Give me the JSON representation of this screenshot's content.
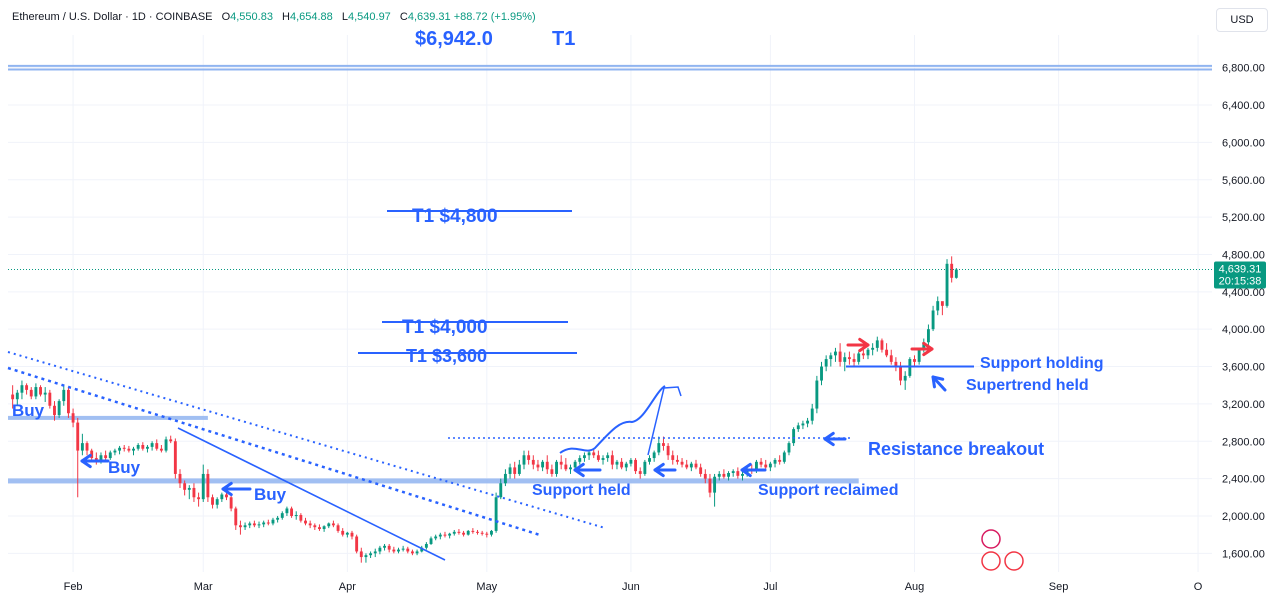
{
  "header": {
    "symbol": "Ethereum / U.S. Dollar · 1D · COINBASE",
    "open_label": "O",
    "open": "4,550.83",
    "high_label": "H",
    "high": "4,654.88",
    "low_label": "L",
    "low": "4,540.97",
    "close_label": "C",
    "close": "4,639.31",
    "change": "+88.72 (+1.95%)"
  },
  "currency_button": "USD",
  "last_price_badge": {
    "price": "4,639.31",
    "countdown": "20:15:38"
  },
  "annotations": {
    "target_price": "$6,942.0",
    "target_label": "T1",
    "t1_4800": "T1 $4,800",
    "t1_4000": "T1 $4,000",
    "t1_3600": "T1 $3,600",
    "buy_1": "Buy",
    "buy_2": "Buy",
    "buy_3": "Buy",
    "support_held": "Support held",
    "support_reclaimed": "Support reclaimed",
    "resistance_breakout": "Resistance breakout",
    "support_holding": "Support holding",
    "supertrend_held": "Supertrend held"
  },
  "colors": {
    "up": "#089981",
    "down": "#f23645",
    "drawing": "#2962ff",
    "support_band": "#90b4f0",
    "red_arrow": "#f23645"
  },
  "chart_data": {
    "type": "candlestick",
    "ylim": [
      1400,
      7150
    ],
    "y_ticks": [
      1600,
      2000,
      2400,
      2800,
      3200,
      3600,
      4000,
      4400,
      4800,
      5200,
      5600,
      6000,
      6400,
      6800
    ],
    "y_tick_labels": [
      "1,600.00",
      "2,000.00",
      "2,400.00",
      "2,800.00",
      "3,200.00",
      "3,600.00",
      "4,000.00",
      "4,400.00",
      "4,800.00",
      "5,200.00",
      "5,600.00",
      "6,000.00",
      "6,400.00",
      "6,800.00"
    ],
    "x_ticks": [
      "Feb",
      "Mar",
      "Apr",
      "May",
      "Jun",
      "Jul",
      "Aug",
      "Sep",
      "O"
    ],
    "x_tick_days": [
      31,
      59,
      90,
      120,
      151,
      181,
      212,
      243,
      273
    ],
    "x_range_days": [
      17,
      276
    ],
    "candles": [
      [
        18,
        3300,
        3400,
        3150,
        3250
      ],
      [
        19,
        3250,
        3350,
        3180,
        3320
      ],
      [
        20,
        3320,
        3450,
        3250,
        3400
      ],
      [
        21,
        3400,
        3420,
        3300,
        3350
      ],
      [
        22,
        3350,
        3380,
        3250,
        3280
      ],
      [
        23,
        3280,
        3420,
        3250,
        3380
      ],
      [
        24,
        3380,
        3400,
        3280,
        3300
      ],
      [
        25,
        3300,
        3380,
        3220,
        3320
      ],
      [
        26,
        3320,
        3350,
        3150,
        3180
      ],
      [
        27,
        3180,
        3230,
        3020,
        3080
      ],
      [
        28,
        3080,
        3250,
        3050,
        3230
      ],
      [
        29,
        3230,
        3400,
        3180,
        3350
      ],
      [
        30,
        3350,
        3380,
        3050,
        3100
      ],
      [
        31,
        3100,
        3150,
        2950,
        3000
      ],
      [
        32,
        3000,
        3050,
        2200,
        2700
      ],
      [
        33,
        2700,
        2880,
        2650,
        2780
      ],
      [
        34,
        2780,
        2800,
        2650,
        2700
      ],
      [
        35,
        2700,
        2720,
        2600,
        2620
      ],
      [
        36,
        2620,
        2680,
        2550,
        2600
      ],
      [
        37,
        2600,
        2680,
        2560,
        2650
      ],
      [
        38,
        2650,
        2700,
        2580,
        2620
      ],
      [
        39,
        2620,
        2700,
        2600,
        2680
      ],
      [
        40,
        2680,
        2720,
        2650,
        2700
      ],
      [
        41,
        2700,
        2750,
        2660,
        2730
      ],
      [
        42,
        2730,
        2760,
        2690,
        2720
      ],
      [
        43,
        2720,
        2750,
        2680,
        2700
      ],
      [
        44,
        2700,
        2740,
        2650,
        2720
      ],
      [
        45,
        2720,
        2780,
        2700,
        2760
      ],
      [
        46,
        2760,
        2790,
        2700,
        2720
      ],
      [
        47,
        2720,
        2760,
        2680,
        2740
      ],
      [
        48,
        2740,
        2800,
        2700,
        2780
      ],
      [
        49,
        2780,
        2820,
        2700,
        2720
      ],
      [
        50,
        2720,
        2760,
        2680,
        2700
      ],
      [
        51,
        2700,
        2850,
        2680,
        2820
      ],
      [
        52,
        2820,
        2860,
        2780,
        2800
      ],
      [
        53,
        2800,
        2830,
        2400,
        2450
      ],
      [
        54,
        2450,
        2500,
        2300,
        2350
      ],
      [
        55,
        2350,
        2380,
        2220,
        2280
      ],
      [
        56,
        2280,
        2330,
        2180,
        2300
      ],
      [
        57,
        2300,
        2350,
        2150,
        2200
      ],
      [
        58,
        2200,
        2250,
        2100,
        2180
      ],
      [
        59,
        2180,
        2550,
        2150,
        2450
      ],
      [
        60,
        2450,
        2500,
        2150,
        2200
      ],
      [
        61,
        2200,
        2230,
        2080,
        2120
      ],
      [
        62,
        2120,
        2200,
        2080,
        2180
      ],
      [
        63,
        2180,
        2250,
        2150,
        2230
      ],
      [
        64,
        2230,
        2270,
        2170,
        2200
      ],
      [
        65,
        2200,
        2230,
        2050,
        2080
      ],
      [
        66,
        2080,
        2100,
        1850,
        1900
      ],
      [
        67,
        1900,
        1950,
        1800,
        1880
      ],
      [
        68,
        1880,
        1930,
        1850,
        1900
      ],
      [
        69,
        1900,
        1940,
        1870,
        1920
      ],
      [
        70,
        1920,
        1950,
        1880,
        1900
      ],
      [
        71,
        1900,
        1940,
        1870,
        1910
      ],
      [
        72,
        1910,
        1950,
        1880,
        1930
      ],
      [
        73,
        1930,
        1960,
        1900,
        1920
      ],
      [
        74,
        1920,
        1980,
        1900,
        1960
      ],
      [
        75,
        1960,
        2000,
        1930,
        1980
      ],
      [
        76,
        1980,
        2050,
        1960,
        2030
      ],
      [
        77,
        2030,
        2100,
        2000,
        2080
      ],
      [
        78,
        2080,
        2100,
        1980,
        2000
      ],
      [
        79,
        2000,
        2050,
        1960,
        2010
      ],
      [
        80,
        2010,
        2030,
        1930,
        1950
      ],
      [
        81,
        1950,
        1980,
        1900,
        1920
      ],
      [
        82,
        1920,
        1950,
        1870,
        1900
      ],
      [
        83,
        1900,
        1920,
        1850,
        1880
      ],
      [
        84,
        1880,
        1910,
        1840,
        1860
      ],
      [
        85,
        1860,
        1900,
        1830,
        1890
      ],
      [
        86,
        1890,
        1930,
        1870,
        1920
      ],
      [
        87,
        1920,
        1950,
        1880,
        1900
      ],
      [
        88,
        1900,
        1920,
        1820,
        1840
      ],
      [
        89,
        1840,
        1870,
        1780,
        1800
      ],
      [
        90,
        1800,
        1830,
        1770,
        1820
      ],
      [
        91,
        1820,
        1840,
        1750,
        1780
      ],
      [
        92,
        1780,
        1800,
        1600,
        1620
      ],
      [
        93,
        1620,
        1660,
        1500,
        1560
      ],
      [
        94,
        1560,
        1600,
        1500,
        1580
      ],
      [
        95,
        1580,
        1620,
        1550,
        1600
      ],
      [
        96,
        1600,
        1650,
        1560,
        1620
      ],
      [
        97,
        1620,
        1680,
        1590,
        1660
      ],
      [
        98,
        1660,
        1700,
        1630,
        1680
      ],
      [
        99,
        1680,
        1700,
        1610,
        1640
      ],
      [
        100,
        1640,
        1670,
        1600,
        1620
      ],
      [
        101,
        1620,
        1660,
        1600,
        1640
      ],
      [
        102,
        1640,
        1680,
        1620,
        1650
      ],
      [
        103,
        1650,
        1670,
        1600,
        1620
      ],
      [
        104,
        1620,
        1640,
        1580,
        1600
      ],
      [
        105,
        1600,
        1640,
        1580,
        1620
      ],
      [
        106,
        1620,
        1680,
        1610,
        1660
      ],
      [
        107,
        1660,
        1720,
        1640,
        1700
      ],
      [
        108,
        1700,
        1780,
        1690,
        1760
      ],
      [
        109,
        1760,
        1800,
        1740,
        1780
      ],
      [
        110,
        1780,
        1820,
        1750,
        1800
      ],
      [
        111,
        1800,
        1830,
        1770,
        1790
      ],
      [
        112,
        1790,
        1820,
        1760,
        1810
      ],
      [
        113,
        1810,
        1850,
        1790,
        1830
      ],
      [
        114,
        1830,
        1860,
        1800,
        1820
      ],
      [
        115,
        1820,
        1840,
        1780,
        1800
      ],
      [
        116,
        1800,
        1850,
        1790,
        1840
      ],
      [
        117,
        1840,
        1870,
        1810,
        1830
      ],
      [
        118,
        1830,
        1850,
        1800,
        1820
      ],
      [
        119,
        1820,
        1840,
        1790,
        1810
      ],
      [
        120,
        1810,
        1830,
        1770,
        1800
      ],
      [
        121,
        1800,
        1850,
        1780,
        1840
      ],
      [
        122,
        1840,
        2250,
        1820,
        2200
      ],
      [
        123,
        2200,
        2400,
        2180,
        2350
      ],
      [
        124,
        2350,
        2500,
        2320,
        2450
      ],
      [
        125,
        2450,
        2560,
        2400,
        2520
      ],
      [
        126,
        2520,
        2580,
        2400,
        2450
      ],
      [
        127,
        2450,
        2600,
        2430,
        2550
      ],
      [
        128,
        2550,
        2700,
        2500,
        2650
      ],
      [
        129,
        2650,
        2700,
        2550,
        2600
      ],
      [
        130,
        2600,
        2650,
        2500,
        2550
      ],
      [
        131,
        2550,
        2600,
        2480,
        2520
      ],
      [
        132,
        2520,
        2600,
        2480,
        2580
      ],
      [
        133,
        2580,
        2650,
        2450,
        2500
      ],
      [
        134,
        2500,
        2550,
        2420,
        2450
      ],
      [
        135,
        2450,
        2600,
        2420,
        2580
      ],
      [
        136,
        2580,
        2650,
        2500,
        2550
      ],
      [
        137,
        2550,
        2620,
        2480,
        2500
      ],
      [
        138,
        2500,
        2550,
        2450,
        2520
      ],
      [
        139,
        2520,
        2600,
        2500,
        2580
      ],
      [
        140,
        2580,
        2650,
        2550,
        2620
      ],
      [
        141,
        2620,
        2680,
        2580,
        2650
      ],
      [
        142,
        2650,
        2700,
        2600,
        2680
      ],
      [
        143,
        2680,
        2720,
        2620,
        2650
      ],
      [
        144,
        2650,
        2700,
        2580,
        2600
      ],
      [
        145,
        2600,
        2650,
        2550,
        2620
      ],
      [
        146,
        2620,
        2680,
        2580,
        2650
      ],
      [
        147,
        2650,
        2700,
        2500,
        2550
      ],
      [
        148,
        2550,
        2600,
        2500,
        2580
      ],
      [
        149,
        2580,
        2620,
        2500,
        2520
      ],
      [
        150,
        2520,
        2580,
        2480,
        2560
      ],
      [
        151,
        2560,
        2620,
        2530,
        2600
      ],
      [
        152,
        2600,
        2620,
        2450,
        2480
      ],
      [
        153,
        2480,
        2520,
        2400,
        2450
      ],
      [
        154,
        2450,
        2600,
        2430,
        2580
      ],
      [
        155,
        2580,
        2650,
        2550,
        2620
      ],
      [
        156,
        2620,
        2700,
        2580,
        2680
      ],
      [
        157,
        2680,
        2850,
        2650,
        2780
      ],
      [
        158,
        2780,
        2850,
        2700,
        2750
      ],
      [
        159,
        2750,
        2780,
        2600,
        2650
      ],
      [
        160,
        2650,
        2700,
        2550,
        2600
      ],
      [
        161,
        2600,
        2650,
        2550,
        2580
      ],
      [
        162,
        2580,
        2620,
        2520,
        2550
      ],
      [
        163,
        2550,
        2600,
        2500,
        2520
      ],
      [
        164,
        2520,
        2580,
        2480,
        2560
      ],
      [
        165,
        2560,
        2600,
        2500,
        2520
      ],
      [
        166,
        2520,
        2560,
        2420,
        2450
      ],
      [
        167,
        2450,
        2500,
        2350,
        2400
      ],
      [
        168,
        2400,
        2450,
        2200,
        2250
      ],
      [
        169,
        2250,
        2450,
        2100,
        2420
      ],
      [
        170,
        2420,
        2480,
        2380,
        2450
      ],
      [
        171,
        2450,
        2500,
        2400,
        2420
      ],
      [
        172,
        2420,
        2480,
        2380,
        2460
      ],
      [
        173,
        2460,
        2500,
        2420,
        2480
      ],
      [
        174,
        2480,
        2520,
        2400,
        2430
      ],
      [
        175,
        2430,
        2480,
        2380,
        2450
      ],
      [
        176,
        2450,
        2520,
        2420,
        2500
      ],
      [
        177,
        2500,
        2550,
        2450,
        2480
      ],
      [
        178,
        2480,
        2600,
        2460,
        2580
      ],
      [
        179,
        2580,
        2620,
        2520,
        2550
      ],
      [
        180,
        2550,
        2600,
        2500,
        2520
      ],
      [
        181,
        2520,
        2580,
        2480,
        2560
      ],
      [
        182,
        2560,
        2620,
        2520,
        2600
      ],
      [
        183,
        2600,
        2650,
        2550,
        2580
      ],
      [
        184,
        2580,
        2700,
        2560,
        2680
      ],
      [
        185,
        2680,
        2800,
        2650,
        2780
      ],
      [
        186,
        2780,
        2950,
        2750,
        2930
      ],
      [
        187,
        2930,
        3000,
        2900,
        2970
      ],
      [
        188,
        2970,
        3020,
        2930,
        2990
      ],
      [
        189,
        2990,
        3050,
        2950,
        3020
      ],
      [
        190,
        3020,
        3200,
        2980,
        3150
      ],
      [
        191,
        3150,
        3500,
        3100,
        3450
      ],
      [
        192,
        3450,
        3650,
        3400,
        3600
      ],
      [
        193,
        3600,
        3720,
        3550,
        3680
      ],
      [
        194,
        3680,
        3750,
        3600,
        3720
      ],
      [
        195,
        3720,
        3800,
        3650,
        3760
      ],
      [
        196,
        3760,
        3850,
        3600,
        3650
      ],
      [
        197,
        3650,
        3750,
        3550,
        3700
      ],
      [
        198,
        3700,
        3760,
        3620,
        3680
      ],
      [
        199,
        3680,
        3740,
        3600,
        3650
      ],
      [
        200,
        3650,
        3760,
        3620,
        3740
      ],
      [
        201,
        3740,
        3800,
        3680,
        3720
      ],
      [
        202,
        3720,
        3800,
        3680,
        3780
      ],
      [
        203,
        3780,
        3850,
        3720,
        3800
      ],
      [
        204,
        3800,
        3920,
        3760,
        3880
      ],
      [
        205,
        3880,
        3900,
        3750,
        3780
      ],
      [
        206,
        3780,
        3850,
        3700,
        3720
      ],
      [
        207,
        3720,
        3780,
        3620,
        3650
      ],
      [
        208,
        3650,
        3700,
        3550,
        3600
      ],
      [
        209,
        3600,
        3650,
        3400,
        3450
      ],
      [
        210,
        3450,
        3550,
        3350,
        3500
      ],
      [
        211,
        3500,
        3700,
        3480,
        3680
      ],
      [
        212,
        3680,
        3720,
        3600,
        3650
      ],
      [
        213,
        3650,
        3800,
        3620,
        3780
      ],
      [
        214,
        3780,
        3900,
        3750,
        3860
      ],
      [
        215,
        3860,
        4050,
        3820,
        4000
      ],
      [
        216,
        4000,
        4250,
        3980,
        4200
      ],
      [
        217,
        4200,
        4350,
        4150,
        4300
      ],
      [
        218,
        4300,
        4280,
        4150,
        4250
      ],
      [
        219,
        4250,
        4750,
        4230,
        4700
      ],
      [
        220,
        4700,
        4780,
        4500,
        4550
      ],
      [
        221,
        4550,
        4655,
        4541,
        4639
      ]
    ]
  }
}
